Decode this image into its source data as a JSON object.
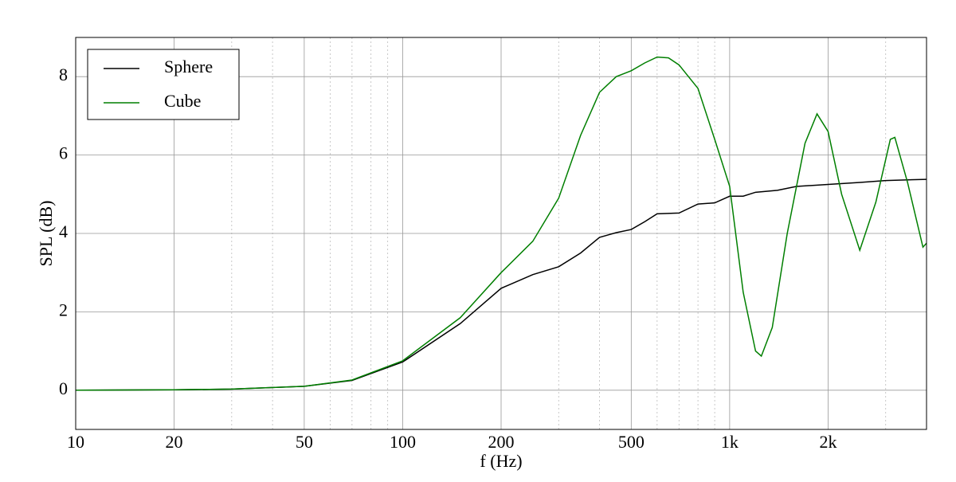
{
  "chart_data": {
    "type": "line",
    "xlabel": "f (Hz)",
    "ylabel": "SPL (dB)",
    "xscale": "log",
    "xlim": [
      10,
      4000
    ],
    "ylim": [
      -1,
      9
    ],
    "xticks": [
      10,
      20,
      50,
      100,
      200,
      500,
      {
        "value": 1000,
        "label": "1k"
      },
      {
        "value": 2000,
        "label": "2k"
      }
    ],
    "xminorticks": [
      30,
      40,
      60,
      70,
      80,
      90,
      300,
      400,
      600,
      700,
      800,
      900,
      3000
    ],
    "yticks": [
      0,
      2,
      4,
      6,
      8
    ],
    "grid": true,
    "legend": "upper left",
    "series": [
      {
        "name": "Sphere",
        "color": "#000000",
        "x": [
          10,
          20,
          30,
          50,
          70,
          100,
          150,
          200,
          250,
          300,
          350,
          400,
          450,
          500,
          550,
          600,
          700,
          800,
          900,
          1000,
          1100,
          1200,
          1400,
          1600,
          2000,
          2500,
          3000,
          4000
        ],
        "values": [
          0,
          0.01,
          0.03,
          0.1,
          0.25,
          0.72,
          1.7,
          2.6,
          2.95,
          3.15,
          3.5,
          3.9,
          4.02,
          4.1,
          4.3,
          4.5,
          4.52,
          4.75,
          4.78,
          4.95,
          4.95,
          5.05,
          5.1,
          5.2,
          5.25,
          5.3,
          5.35,
          5.38
        ]
      },
      {
        "name": "Cube",
        "color": "#007f00",
        "x": [
          10,
          20,
          30,
          50,
          70,
          100,
          150,
          200,
          250,
          300,
          350,
          400,
          450,
          500,
          550,
          600,
          650,
          700,
          800,
          900,
          1000,
          1100,
          1200,
          1250,
          1350,
          1500,
          1700,
          1850,
          2000,
          2200,
          2500,
          2800,
          3100,
          3200,
          3500,
          3900,
          4000
        ],
        "values": [
          0,
          0.01,
          0.03,
          0.1,
          0.26,
          0.75,
          1.85,
          3.0,
          3.8,
          4.9,
          6.5,
          7.6,
          8.0,
          8.15,
          8.35,
          8.5,
          8.48,
          8.3,
          7.7,
          6.4,
          5.2,
          2.5,
          1.0,
          0.87,
          1.6,
          4.0,
          6.3,
          7.05,
          6.6,
          5.0,
          3.57,
          4.8,
          6.4,
          6.45,
          5.3,
          3.65,
          3.75
        ]
      }
    ]
  }
}
